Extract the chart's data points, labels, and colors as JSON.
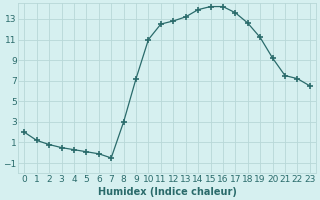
{
  "x": [
    0,
    1,
    2,
    3,
    4,
    5,
    6,
    7,
    8,
    9,
    10,
    11,
    12,
    13,
    14,
    15,
    16,
    17,
    18,
    19,
    20,
    21,
    22,
    23
  ],
  "y": [
    2.0,
    1.2,
    0.8,
    0.5,
    0.3,
    0.1,
    -0.1,
    -0.5,
    3.0,
    7.2,
    11.0,
    12.5,
    12.8,
    13.2,
    13.9,
    14.2,
    14.2,
    13.6,
    12.6,
    11.2,
    9.2,
    7.5,
    7.2,
    6.5
  ],
  "line_color": "#2a6b6b",
  "marker": "+",
  "marker_size": 4,
  "bg_color": "#d6f0f0",
  "grid_color": "#b8d8d8",
  "xlabel": "Humidex (Indice chaleur)",
  "xlim": [
    -0.5,
    23.5
  ],
  "ylim": [
    -2.0,
    14.5
  ],
  "yticks": [
    -1,
    1,
    3,
    5,
    7,
    9,
    11,
    13
  ],
  "xticks": [
    0,
    1,
    2,
    3,
    4,
    5,
    6,
    7,
    8,
    9,
    10,
    11,
    12,
    13,
    14,
    15,
    16,
    17,
    18,
    19,
    20,
    21,
    22,
    23
  ],
  "tick_color": "#2a6b6b",
  "label_color": "#2a6b6b",
  "xlabel_fontsize": 7,
  "tick_fontsize": 6.5
}
